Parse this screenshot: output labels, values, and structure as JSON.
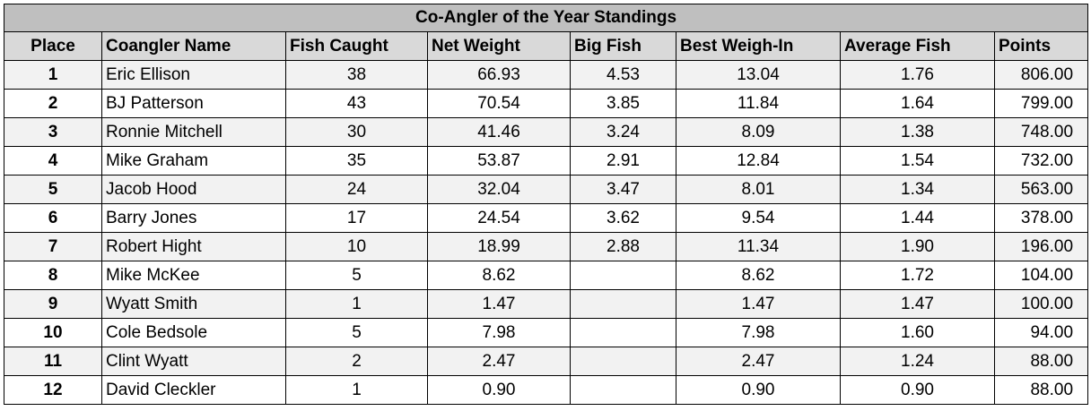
{
  "table": {
    "title": "Co-Angler of the Year Standings",
    "columns": [
      "Place",
      "Coangler Name",
      "Fish Caught",
      "Net Weight",
      "Big Fish",
      "Best Weigh-In",
      "Average Fish",
      "Points"
    ],
    "rows": [
      [
        "1",
        "Eric Ellison",
        "38",
        "66.93",
        "4.53",
        "13.04",
        "1.76",
        "806.00"
      ],
      [
        "2",
        "BJ Patterson",
        "43",
        "70.54",
        "3.85",
        "11.84",
        "1.64",
        "799.00"
      ],
      [
        "3",
        "Ronnie Mitchell",
        "30",
        "41.46",
        "3.24",
        "8.09",
        "1.38",
        "748.00"
      ],
      [
        "4",
        "Mike Graham",
        "35",
        "53.87",
        "2.91",
        "12.84",
        "1.54",
        "732.00"
      ],
      [
        "5",
        "Jacob Hood",
        "24",
        "32.04",
        "3.47",
        "8.01",
        "1.34",
        "563.00"
      ],
      [
        "6",
        "Barry Jones",
        "17",
        "24.54",
        "3.62",
        "9.54",
        "1.44",
        "378.00"
      ],
      [
        "7",
        "Robert Hight",
        "10",
        "18.99",
        "2.88",
        "11.34",
        "1.90",
        "196.00"
      ],
      [
        "8",
        "Mike McKee",
        "5",
        "8.62",
        null,
        "8.62",
        "1.72",
        "104.00"
      ],
      [
        "9",
        "Wyatt Smith",
        "1",
        "1.47",
        null,
        "1.47",
        "1.47",
        "100.00"
      ],
      [
        "10",
        "Cole Bedsole",
        "5",
        "7.98",
        null,
        "7.98",
        "1.60",
        "94.00"
      ],
      [
        "11",
        "Clint Wyatt",
        "2",
        "2.47",
        null,
        "2.47",
        "1.24",
        "88.00"
      ],
      [
        "12",
        "David Cleckler",
        "1",
        "0.90",
        null,
        "0.90",
        "0.90",
        "88.00"
      ]
    ]
  }
}
